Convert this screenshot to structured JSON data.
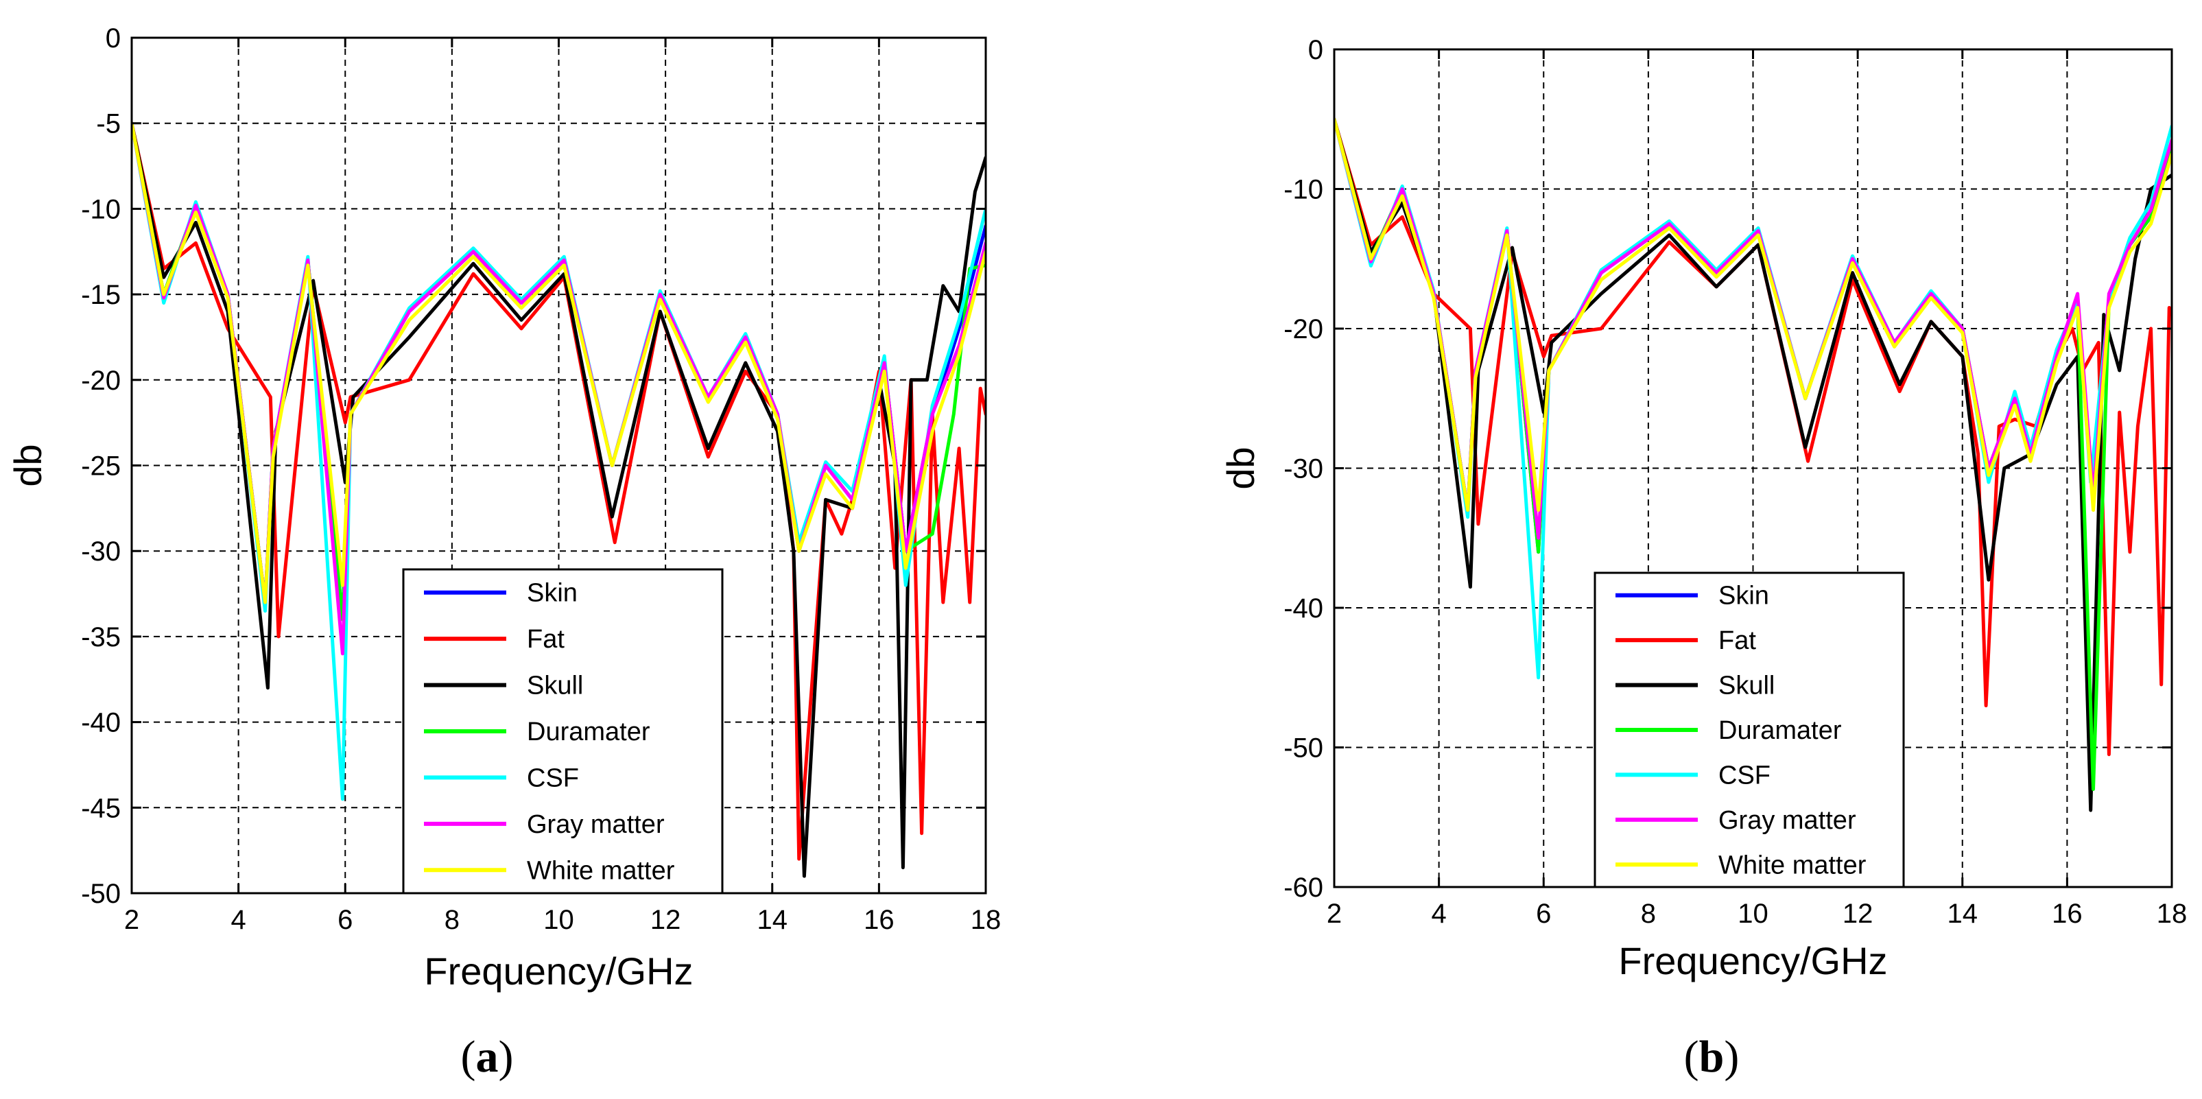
{
  "figure": {
    "panel_a_label": "a",
    "panel_b_label": "b"
  },
  "legend_entries": [
    "Skin",
    "Fat",
    "Skull",
    "Duramater",
    "CSF",
    "Gray matter",
    "White matter"
  ],
  "colors": {
    "Skin": "#0000ff",
    "Fat": "#ff0000",
    "Skull": "#000000",
    "Duramater": "#00ff00",
    "CSF": "#00ffff",
    "Gray matter": "#ff00ff",
    "White matter": "#ffff00"
  },
  "chart_data": [
    {
      "type": "line",
      "panel": "a",
      "title": "",
      "xlabel": "Frequency/GHz",
      "ylabel": "db",
      "xlim": [
        2,
        18
      ],
      "ylim": [
        -50,
        0
      ],
      "xticks": [
        2,
        4,
        6,
        8,
        10,
        12,
        14,
        16,
        18
      ],
      "yticks": [
        0,
        -5,
        -10,
        -15,
        -20,
        -25,
        -30,
        -35,
        -40,
        -45,
        -50
      ],
      "grid": true,
      "legend_position": "bottom-right",
      "series": [
        {
          "name": "Skin",
          "x": [
            2,
            2.6,
            3.2,
            3.8,
            4.5,
            4.65,
            5.3,
            5.95,
            6.1,
            7.2,
            8.4,
            9.3,
            10.1,
            11.0,
            11.9,
            12.8,
            13.5,
            14.1,
            14.5,
            15.0,
            15.5,
            16.1,
            16.5,
            17.0,
            17.5,
            18.0
          ],
          "y": [
            -5,
            -15,
            -9.8,
            -15,
            -33,
            -24,
            -13,
            -34,
            -22,
            -16,
            -12.5,
            -15.5,
            -13,
            -25,
            -15,
            -21,
            -17.5,
            -22,
            -30,
            -25,
            -27,
            -19,
            -30,
            -22,
            -17,
            -11
          ]
        },
        {
          "name": "Fat",
          "x": [
            2,
            2.6,
            3.2,
            3.8,
            4.6,
            4.75,
            5.4,
            6.0,
            6.1,
            7.2,
            8.4,
            9.3,
            10.1,
            11.05,
            11.9,
            12.8,
            13.5,
            14.1,
            14.4,
            14.5,
            15.0,
            15.3,
            15.6,
            16.0,
            16.3,
            16.6,
            16.8,
            17.0,
            17.2,
            17.5,
            17.7,
            17.9,
            18.0
          ],
          "y": [
            -5,
            -13.5,
            -12,
            -17,
            -21,
            -35,
            -14.5,
            -22.5,
            -21,
            -20,
            -13.8,
            -17,
            -14,
            -29.5,
            -16,
            -24.5,
            -19.5,
            -22,
            -30,
            -48,
            -27,
            -29,
            -26,
            -19.5,
            -31,
            -20,
            -46.5,
            -22,
            -33,
            -24,
            -33,
            -20.5,
            -22
          ]
        },
        {
          "name": "Skull",
          "x": [
            2,
            2.6,
            3.2,
            3.8,
            4.55,
            4.7,
            5.4,
            6.0,
            6.15,
            7.2,
            8.4,
            9.3,
            10.1,
            11.0,
            11.9,
            12.8,
            13.5,
            14.1,
            14.4,
            14.6,
            15.0,
            15.5,
            16.0,
            16.3,
            16.45,
            16.6,
            16.9,
            17.2,
            17.5,
            17.8,
            18.0
          ],
          "y": [
            -5,
            -14,
            -10.8,
            -16,
            -38,
            -23,
            -14.2,
            -26,
            -21,
            -17.5,
            -13.2,
            -16.5,
            -13.8,
            -28,
            -16,
            -24,
            -19,
            -23,
            -30,
            -49,
            -27,
            -27.5,
            -20,
            -25,
            -48.5,
            -20,
            -20,
            -14.5,
            -16,
            -9,
            -7
          ]
        },
        {
          "name": "Duramater",
          "x": [
            2,
            2.6,
            3.2,
            3.8,
            4.5,
            4.65,
            5.3,
            5.95,
            6.1,
            7.2,
            8.4,
            9.3,
            10.1,
            11.0,
            11.9,
            12.8,
            13.5,
            14.1,
            14.5,
            15.0,
            15.5,
            16.1,
            16.5,
            17.0,
            17.4,
            17.7,
            18.0
          ],
          "y": [
            -5,
            -15,
            -9.8,
            -15,
            -33,
            -24,
            -13,
            -34,
            -22,
            -16,
            -12.5,
            -15.5,
            -13,
            -25,
            -15,
            -21,
            -17.5,
            -22,
            -30,
            -25,
            -27,
            -19,
            -30,
            -29,
            -22,
            -13.5,
            -13.3
          ]
        },
        {
          "name": "CSF",
          "x": [
            2,
            2.6,
            3.2,
            3.8,
            4.5,
            4.65,
            5.3,
            5.95,
            6.1,
            7.2,
            8.4,
            9.3,
            10.1,
            11.0,
            11.9,
            12.8,
            13.5,
            14.1,
            14.5,
            15.0,
            15.5,
            16.1,
            16.5,
            17.0,
            17.5,
            18.0
          ],
          "y": [
            -5,
            -15.5,
            -9.6,
            -15,
            -33.5,
            -24,
            -12.8,
            -44.5,
            -22,
            -15.8,
            -12.3,
            -15.3,
            -12.8,
            -25,
            -14.8,
            -21,
            -17.3,
            -22,
            -29.5,
            -24.8,
            -26.5,
            -18.6,
            -32,
            -21.5,
            -16.5,
            -10
          ]
        },
        {
          "name": "Gray matter",
          "x": [
            2,
            2.6,
            3.2,
            3.8,
            4.5,
            4.65,
            5.3,
            5.95,
            6.1,
            7.2,
            8.4,
            9.3,
            10.1,
            11.0,
            11.9,
            12.8,
            13.5,
            14.1,
            14.5,
            15.0,
            15.5,
            16.1,
            16.5,
            17.0,
            17.5,
            18.0
          ],
          "y": [
            -5,
            -15.2,
            -9.8,
            -15,
            -33,
            -24,
            -13,
            -36,
            -22,
            -16,
            -12.5,
            -15.5,
            -13,
            -25,
            -15,
            -21,
            -17.5,
            -22,
            -30,
            -25,
            -27,
            -19,
            -30,
            -22,
            -18,
            -12
          ]
        },
        {
          "name": "White matter",
          "x": [
            2,
            2.6,
            3.2,
            3.8,
            4.5,
            4.65,
            5.3,
            5.95,
            6.1,
            7.2,
            8.4,
            9.3,
            10.1,
            11.0,
            11.9,
            12.8,
            13.5,
            14.1,
            14.5,
            15.0,
            15.5,
            16.1,
            16.5,
            17.0,
            17.5,
            18.0
          ],
          "y": [
            -5,
            -15,
            -10.2,
            -15.2,
            -33,
            -24.5,
            -13.3,
            -32,
            -22,
            -16.5,
            -12.8,
            -15.8,
            -13.3,
            -25,
            -15.3,
            -21.3,
            -17.8,
            -22.3,
            -30,
            -25.5,
            -27.5,
            -19.5,
            -31,
            -23,
            -18.5,
            -12.5
          ]
        }
      ]
    },
    {
      "type": "line",
      "panel": "b",
      "title": "",
      "xlabel": "Frequency/GHz",
      "ylabel": "db",
      "xlim": [
        2,
        18
      ],
      "ylim": [
        -60,
        0
      ],
      "xticks": [
        2,
        4,
        6,
        8,
        10,
        12,
        14,
        16,
        18
      ],
      "yticks": [
        0,
        -10,
        -20,
        -30,
        -40,
        -50,
        -60
      ],
      "grid": true,
      "legend_position": "bottom-center",
      "series": [
        {
          "name": "Skin",
          "x": [
            2,
            2.7,
            3.3,
            3.9,
            4.55,
            4.7,
            5.3,
            5.9,
            6.1,
            7.1,
            8.4,
            9.3,
            10.1,
            11.0,
            11.9,
            12.7,
            13.4,
            14.0,
            14.5,
            15.0,
            15.3,
            15.8,
            16.2,
            16.5,
            16.8,
            17.2,
            17.6,
            18.0
          ],
          "y": [
            -5,
            -15,
            -10,
            -17.5,
            -33,
            -23,
            -13,
            -36,
            -23,
            -16,
            -12.5,
            -16,
            -13,
            -25,
            -15,
            -21,
            -17.5,
            -20,
            -30,
            -25,
            -29,
            -22,
            -18,
            -32,
            -18,
            -14,
            -12,
            -7
          ]
        },
        {
          "name": "Fat",
          "x": [
            2,
            2.7,
            3.3,
            3.9,
            4.6,
            4.75,
            5.4,
            6.0,
            6.15,
            7.1,
            8.4,
            9.3,
            10.1,
            11.05,
            11.9,
            12.8,
            13.4,
            14.0,
            14.3,
            14.45,
            14.7,
            15.0,
            15.4,
            15.8,
            16.1,
            16.3,
            16.6,
            16.8,
            17.0,
            17.2,
            17.35,
            17.6,
            17.8,
            17.95,
            18.0
          ],
          "y": [
            -5,
            -14,
            -12,
            -17.5,
            -20,
            -34,
            -14.5,
            -22,
            -20.5,
            -20,
            -13.8,
            -17,
            -14,
            -29.5,
            -16.5,
            -24.5,
            -19.5,
            -22,
            -29,
            -47,
            -27,
            -26.5,
            -27,
            -22,
            -20,
            -23,
            -21,
            -50.5,
            -26,
            -36,
            -27,
            -20,
            -45.5,
            -18.5,
            -19
          ]
        },
        {
          "name": "Skull",
          "x": [
            2,
            2.7,
            3.3,
            3.9,
            4.6,
            4.75,
            5.4,
            6.0,
            6.15,
            7.1,
            8.4,
            9.3,
            10.1,
            11.0,
            11.9,
            12.8,
            13.4,
            14.0,
            14.5,
            14.8,
            15.3,
            15.8,
            16.2,
            16.45,
            16.7,
            17.0,
            17.3,
            17.6,
            18.0
          ],
          "y": [
            -5,
            -14.5,
            -11,
            -17.5,
            -38.5,
            -23,
            -14.2,
            -26,
            -21,
            -17.5,
            -13.3,
            -17,
            -14,
            -28.5,
            -16,
            -24,
            -19.5,
            -22,
            -38,
            -30,
            -29,
            -24,
            -22,
            -54.5,
            -19,
            -23,
            -15,
            -10,
            -9
          ]
        },
        {
          "name": "Duramater",
          "x": [
            2,
            2.7,
            3.3,
            3.9,
            4.55,
            4.7,
            5.3,
            5.9,
            6.1,
            7.1,
            8.4,
            9.3,
            10.1,
            11.0,
            11.9,
            12.7,
            13.4,
            14.0,
            14.5,
            15.0,
            15.3,
            15.8,
            16.2,
            16.5,
            16.8,
            17.2,
            17.6,
            18.0
          ],
          "y": [
            -5,
            -15,
            -10,
            -17.5,
            -33,
            -23,
            -13,
            -36,
            -23,
            -16,
            -12.5,
            -16,
            -13,
            -25,
            -15,
            -21,
            -17.5,
            -20,
            -30,
            -25,
            -29,
            -22,
            -18,
            -53,
            -18,
            -14,
            -12,
            -7
          ]
        },
        {
          "name": "CSF",
          "x": [
            2,
            2.7,
            3.3,
            3.9,
            4.55,
            4.7,
            5.3,
            5.9,
            6.1,
            7.1,
            8.4,
            9.3,
            10.1,
            11.0,
            11.9,
            12.7,
            13.4,
            14.0,
            14.5,
            15.0,
            15.3,
            15.8,
            16.2,
            16.45,
            16.8,
            17.2,
            17.6,
            18.0
          ],
          "y": [
            -5,
            -15.5,
            -9.8,
            -17.3,
            -33.5,
            -23,
            -12.8,
            -45,
            -23,
            -15.8,
            -12.3,
            -15.8,
            -12.8,
            -25,
            -14.8,
            -21,
            -17.3,
            -20,
            -31,
            -24.5,
            -28.5,
            -21.5,
            -18,
            -31,
            -18,
            -13.5,
            -11,
            -5.5
          ]
        },
        {
          "name": "Gray matter",
          "x": [
            2,
            2.7,
            3.3,
            3.9,
            4.55,
            4.7,
            5.3,
            5.9,
            6.1,
            7.1,
            8.4,
            9.3,
            10.1,
            11.0,
            11.9,
            12.7,
            13.4,
            14.0,
            14.5,
            15.0,
            15.3,
            15.8,
            16.2,
            16.5,
            16.8,
            17.2,
            17.6,
            18.0
          ],
          "y": [
            -5,
            -15.2,
            -10,
            -17.5,
            -33,
            -23,
            -13,
            -35,
            -23,
            -16,
            -12.5,
            -16,
            -13,
            -25,
            -15,
            -21,
            -17.5,
            -20,
            -30,
            -25,
            -29,
            -22,
            -17.5,
            -32,
            -17.5,
            -14,
            -11.5,
            -6.5
          ]
        },
        {
          "name": "White matter",
          "x": [
            2,
            2.7,
            3.3,
            3.9,
            4.55,
            4.7,
            5.3,
            5.9,
            6.1,
            7.1,
            8.4,
            9.3,
            10.1,
            11.0,
            11.9,
            12.7,
            13.4,
            14.0,
            14.5,
            15.0,
            15.3,
            15.8,
            16.2,
            16.5,
            16.8,
            17.2,
            17.6,
            18.0
          ],
          "y": [
            -5,
            -15,
            -10.5,
            -17.8,
            -33,
            -23.5,
            -13.3,
            -33,
            -23,
            -16.5,
            -12.8,
            -16.3,
            -13.3,
            -25,
            -15.3,
            -21.3,
            -17.8,
            -20.3,
            -30.5,
            -25.5,
            -29.5,
            -22.5,
            -18.5,
            -33,
            -18.5,
            -14.5,
            -12.5,
            -7.5
          ]
        }
      ]
    }
  ]
}
